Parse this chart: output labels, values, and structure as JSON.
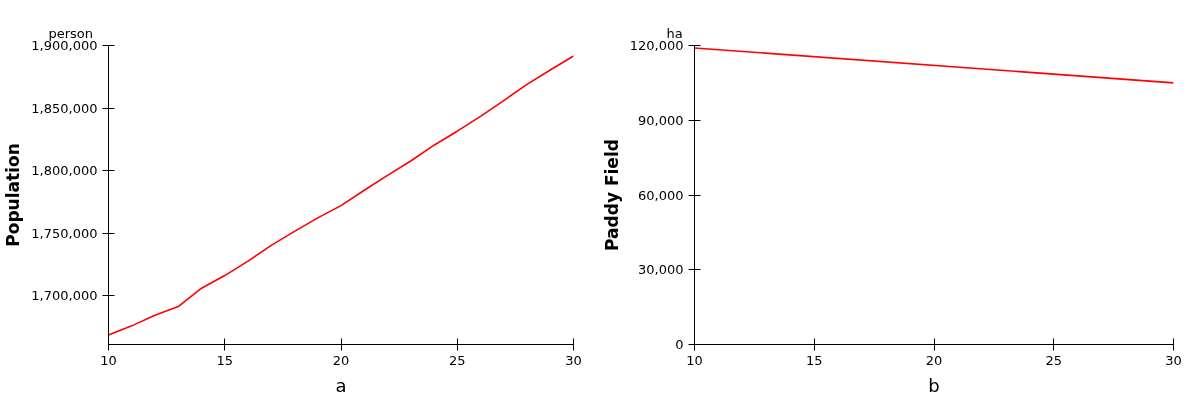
{
  "chart_data": [
    {
      "type": "line",
      "ylabel": "Population",
      "annotations": [
        "person",
        "a"
      ],
      "x": [
        10,
        11,
        12,
        13,
        14,
        15,
        16,
        17,
        18,
        19,
        20,
        21,
        22,
        23,
        24,
        25,
        26,
        27,
        28,
        29,
        30
      ],
      "series": [
        {
          "color": "#ff0000",
          "values": [
            1668500,
            1675900,
            1684300,
            1691300,
            1706000,
            1716100,
            1727700,
            1740200,
            1751400,
            1762200,
            1772000,
            1784300,
            1796200,
            1807700,
            1820300,
            1831500,
            1843400,
            1856000,
            1868900,
            1880400,
            1891600
          ]
        }
      ],
      "xlim": [
        10,
        30
      ],
      "xticks": [
        10,
        15,
        20,
        25,
        30
      ],
      "ylim": [
        1661000,
        1900000
      ],
      "yticks": [
        {
          "value": 1700000,
          "label": "1,700,000"
        },
        {
          "value": 1750000,
          "label": "1,750,000"
        },
        {
          "value": 1800000,
          "label": "1,800,000"
        },
        {
          "value": 1850000,
          "label": "1,850,000"
        },
        {
          "value": 1900000,
          "label": "1,900,000"
        }
      ],
      "grid": false,
      "marker": "none",
      "line_style": "solid"
    },
    {
      "type": "line",
      "ylabel": "Paddy Field",
      "annotations": [
        "ha",
        "b"
      ],
      "x": [
        10,
        30
      ],
      "series": [
        {
          "color": "#ff0000",
          "values": [
            119000,
            105000
          ]
        }
      ],
      "xlim": [
        10,
        30
      ],
      "xticks": [
        10,
        15,
        20,
        25,
        30
      ],
      "ylim": [
        0,
        120000
      ],
      "yticks": [
        {
          "value": 0,
          "label": "0"
        },
        {
          "value": 30000,
          "label": "30,000"
        },
        {
          "value": 60000,
          "label": "60,000"
        },
        {
          "value": 90000,
          "label": "90,000"
        },
        {
          "value": 120000,
          "label": "120,000"
        }
      ],
      "grid": false,
      "marker": "none",
      "line_style": "solid"
    }
  ]
}
